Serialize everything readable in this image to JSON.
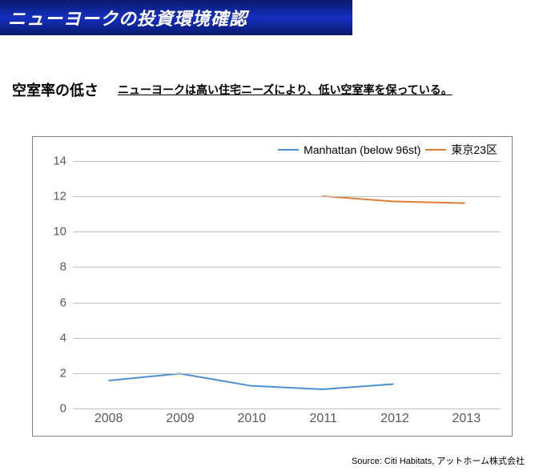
{
  "banner": {
    "title": "ニューヨークの投資環境確認"
  },
  "sub": {
    "title": "空室率の低さ",
    "desc": "ニューヨークは高い住宅ニーズにより、低い空室率を保っている。"
  },
  "chart": {
    "type": "line",
    "background_color": "#ffffff",
    "border_color": "#808080",
    "grid_color": "#bfbfbf",
    "axis_text_color": "#595959",
    "x_categories": [
      "2008",
      "2009",
      "2010",
      "2011",
      "2012",
      "2013"
    ],
    "ylim": [
      0,
      14
    ],
    "ytick_step": 2,
    "yticks": [
      0,
      2,
      4,
      6,
      8,
      10,
      12,
      14
    ],
    "line_width": 2,
    "legend_fontsize": 14,
    "tick_fontsize": 15,
    "series": [
      {
        "name": "Manhattan (below 96st)",
        "color": "#4a8fcf",
        "values": [
          1.5,
          1.9,
          1.2,
          1.0,
          1.3,
          null
        ]
      },
      {
        "name": "東京23区",
        "color": "#e07b33",
        "values": [
          null,
          null,
          null,
          12.0,
          11.7,
          11.6
        ]
      }
    ]
  },
  "source": {
    "text": "Source: Citi Habitats,  アットホーム株式会社"
  }
}
